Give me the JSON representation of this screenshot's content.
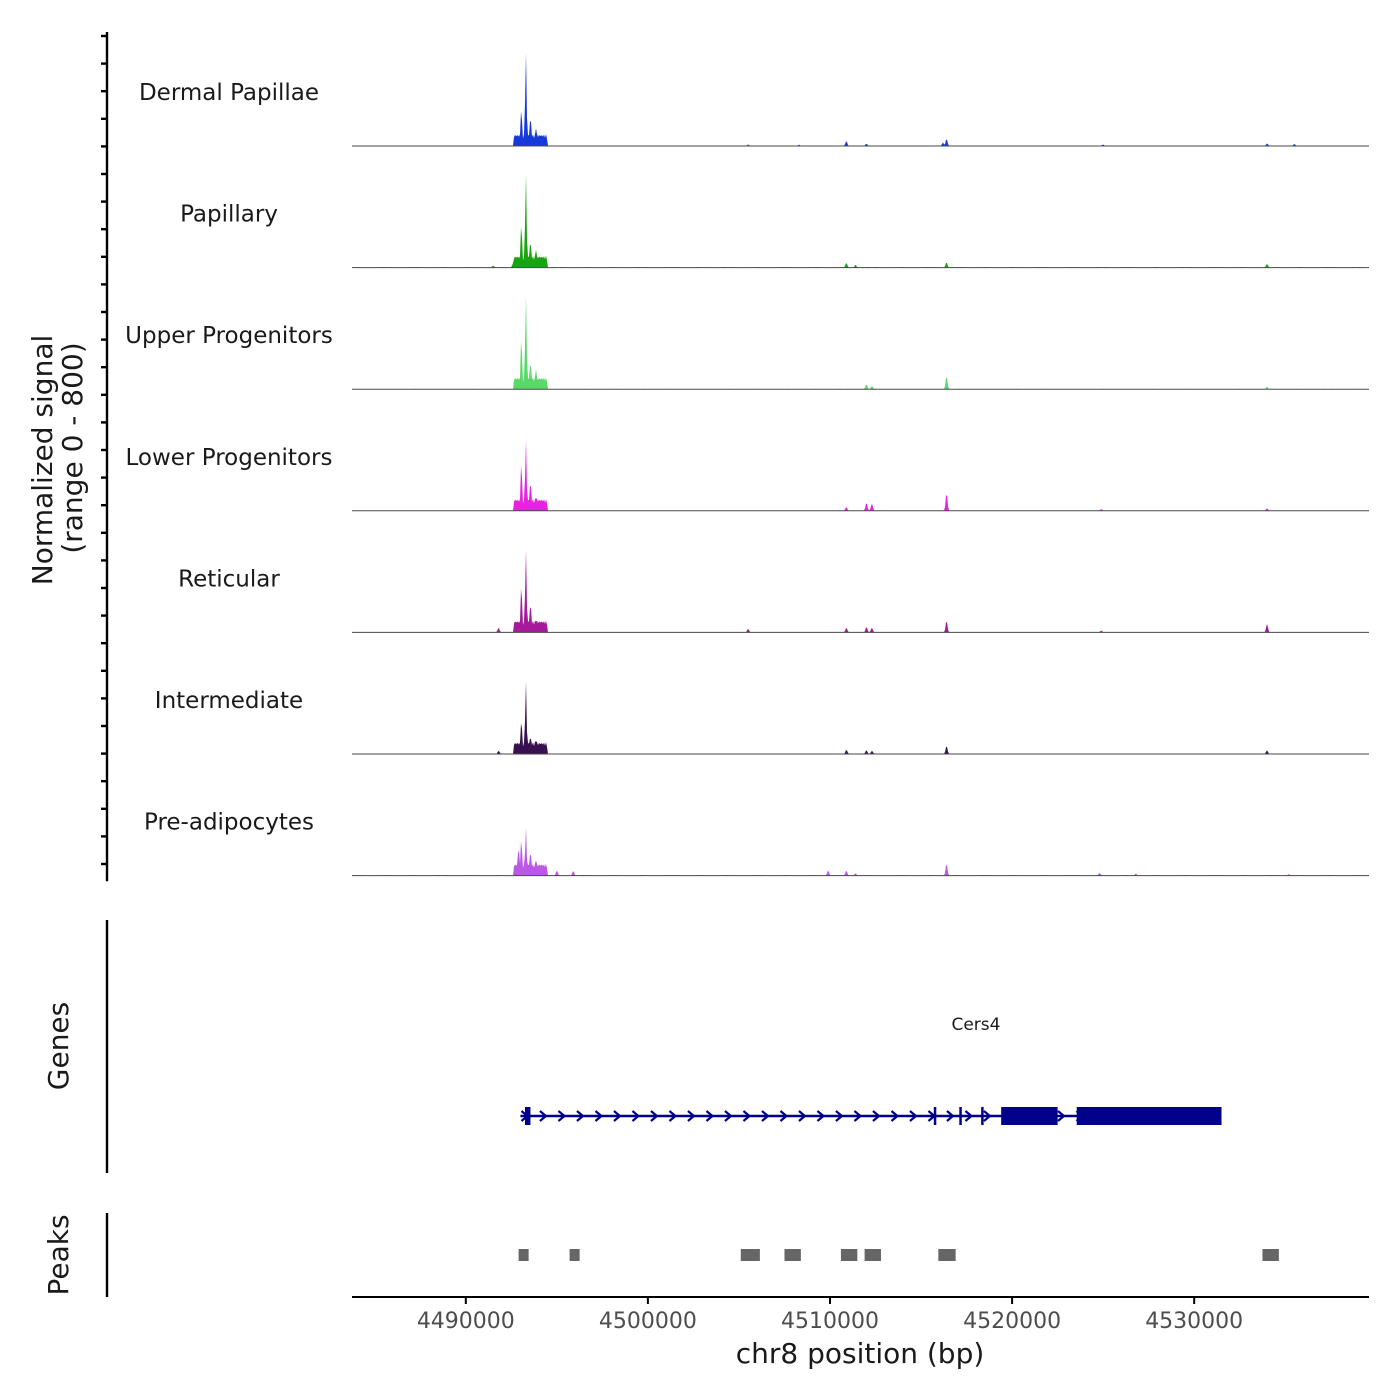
{
  "chart_data": {
    "type": "area",
    "title": "",
    "ylabel_line1": "Normalized signal",
    "ylabel_line2": "(range 0 - 800)",
    "y_range": [
      0,
      800
    ],
    "xlabel": "chr8 position (bp)",
    "x_range": [
      4483750,
      4539600
    ],
    "x_ticks": [
      4490000,
      4500000,
      4510000,
      4520000,
      4530000
    ],
    "x_tick_labels": [
      "4490000",
      "4500000",
      "4510000",
      "4520000",
      "4530000"
    ],
    "tracks": [
      {
        "name": "Dermal Papillae",
        "color": "#1639d8",
        "peaks": [
          [
            4493300,
            800
          ],
          [
            4493050,
            330
          ],
          [
            4493550,
            240
          ],
          [
            4493850,
            150
          ],
          [
            4494100,
            90
          ],
          [
            4492700,
            40
          ],
          [
            4510900,
            40
          ],
          [
            4512000,
            20
          ],
          [
            4516400,
            60
          ],
          [
            4516200,
            30
          ],
          [
            4534000,
            20
          ],
          [
            4535500,
            15
          ],
          [
            4505500,
            12
          ],
          [
            4508300,
            12
          ],
          [
            4525000,
            12
          ]
        ]
      },
      {
        "name": "Papillary",
        "color": "#19a310",
        "peaks": [
          [
            4493300,
            800
          ],
          [
            4493050,
            390
          ],
          [
            4493550,
            220
          ],
          [
            4493850,
            150
          ],
          [
            4494200,
            80
          ],
          [
            4492600,
            40
          ],
          [
            4491500,
            15
          ],
          [
            4510900,
            40
          ],
          [
            4511400,
            25
          ],
          [
            4516400,
            45
          ],
          [
            4534000,
            30
          ]
        ]
      },
      {
        "name": "Upper Progenitors",
        "color": "#5ad868",
        "peaks": [
          [
            4493300,
            800
          ],
          [
            4493050,
            460
          ],
          [
            4493550,
            230
          ],
          [
            4493850,
            170
          ],
          [
            4494100,
            70
          ],
          [
            4512000,
            40
          ],
          [
            4512300,
            25
          ],
          [
            4516400,
            110
          ],
          [
            4534000,
            20
          ]
        ]
      },
      {
        "name": "Lower Progenitors",
        "color": "#e624de",
        "peaks": [
          [
            4493300,
            610
          ],
          [
            4493050,
            430
          ],
          [
            4493550,
            240
          ],
          [
            4493850,
            110
          ],
          [
            4494100,
            70
          ],
          [
            4510900,
            30
          ],
          [
            4512000,
            70
          ],
          [
            4512300,
            60
          ],
          [
            4516400,
            150
          ],
          [
            4534000,
            20
          ],
          [
            4524900,
            12
          ]
        ]
      },
      {
        "name": "Reticular",
        "color": "#a5199a",
        "peaks": [
          [
            4493300,
            710
          ],
          [
            4493050,
            420
          ],
          [
            4493550,
            240
          ],
          [
            4493850,
            90
          ],
          [
            4494100,
            60
          ],
          [
            4491800,
            40
          ],
          [
            4505500,
            30
          ],
          [
            4510900,
            40
          ],
          [
            4512000,
            45
          ],
          [
            4512300,
            40
          ],
          [
            4516400,
            100
          ],
          [
            4534000,
            70
          ],
          [
            4524900,
            15
          ]
        ]
      },
      {
        "name": "Intermediate",
        "color": "#36114e",
        "peaks": [
          [
            4493300,
            620
          ],
          [
            4493050,
            280
          ],
          [
            4493550,
            150
          ],
          [
            4493850,
            110
          ],
          [
            4494100,
            60
          ],
          [
            4491800,
            25
          ],
          [
            4510900,
            35
          ],
          [
            4512000,
            30
          ],
          [
            4512300,
            25
          ],
          [
            4516400,
            70
          ],
          [
            4534000,
            30
          ]
        ]
      },
      {
        "name": "Pre-adipocytes",
        "color": "#bb56e6",
        "peaks": [
          [
            4493300,
            410
          ],
          [
            4493050,
            330
          ],
          [
            4492900,
            240
          ],
          [
            4493550,
            200
          ],
          [
            4493850,
            130
          ],
          [
            4494100,
            80
          ],
          [
            4495000,
            40
          ],
          [
            4495900,
            40
          ],
          [
            4509900,
            45
          ],
          [
            4510900,
            40
          ],
          [
            4511400,
            20
          ],
          [
            4516400,
            100
          ],
          [
            4524800,
            20
          ],
          [
            4526800,
            15
          ],
          [
            4535200,
            12
          ]
        ]
      }
    ],
    "genes": [
      {
        "name": "Cers4",
        "strand": "+",
        "start": 4493000,
        "end": 4531500,
        "exons": [
          [
            4493250,
            4493550
          ],
          [
            4515700,
            4515760
          ],
          [
            4517100,
            4517180
          ],
          [
            4518300,
            4518420
          ],
          [
            4519400,
            4522500
          ],
          [
            4523550,
            4531500
          ]
        ]
      }
    ],
    "genes_panel_label": "Genes",
    "peaks_panel_label": "Peaks",
    "peaks": [
      {
        "start": 4492900,
        "end": 4493450
      },
      {
        "start": 4495700,
        "end": 4496250
      },
      {
        "start": 4505100,
        "end": 4506150
      },
      {
        "start": 4507500,
        "end": 4508400
      },
      {
        "start": 4510600,
        "end": 4511500
      },
      {
        "start": 4511900,
        "end": 4512800
      },
      {
        "start": 4515950,
        "end": 4516900
      },
      {
        "start": 4533750,
        "end": 4534650
      }
    ]
  }
}
